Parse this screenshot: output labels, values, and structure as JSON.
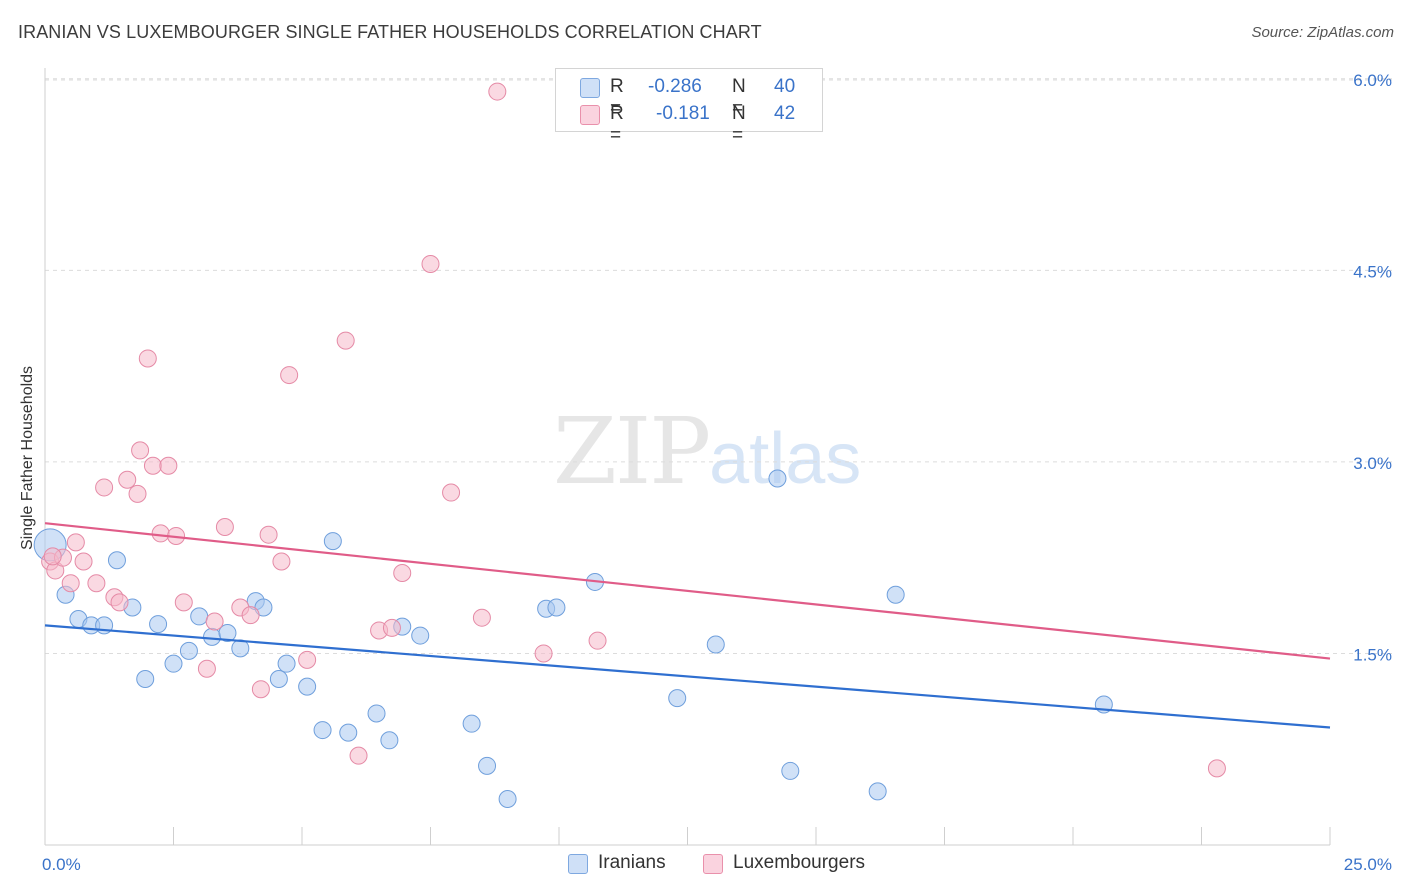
{
  "title": "IRANIAN VS LUXEMBOURGER SINGLE FATHER HOUSEHOLDS CORRELATION CHART",
  "source": "Source: ZipAtlas.com",
  "watermark": {
    "zip": "ZIP",
    "atlas": "atlas"
  },
  "legend": {
    "rows": [
      {
        "r_label": "R =",
        "r_value": "-0.286",
        "n_label": "N =",
        "n_value": "40",
        "color": "#a9c8f0"
      },
      {
        "r_label": "R =",
        "r_value": "-0.181",
        "n_label": "N =",
        "n_value": "42",
        "color": "#f5b9cb"
      }
    ]
  },
  "bottom_legend": [
    {
      "label": "Iranians",
      "color": "#a9c8f0"
    },
    {
      "label": "Luxembourgers",
      "color": "#f5b9cb"
    }
  ],
  "chart_data": {
    "type": "scatter",
    "title": "IRANIAN VS LUXEMBOURGER SINGLE FATHER HOUSEHOLDS CORRELATION CHART",
    "xlabel": "",
    "ylabel": "Single Father Households",
    "xlim": [
      0,
      25
    ],
    "ylim": [
      0,
      6.2
    ],
    "x_tick_labels": [
      "0.0%",
      "25.0%"
    ],
    "y_ticks": [
      1.5,
      3.0,
      4.5,
      6.0
    ],
    "y_tick_labels": [
      "1.5%",
      "3.0%",
      "4.5%",
      "6.0%"
    ],
    "grid": true,
    "series": [
      {
        "name": "Iranians",
        "color": "#a9c8f0",
        "stroke": "#6f9fdc",
        "line_color": "#2f6fd0",
        "trend": {
          "x": [
            0,
            25
          ],
          "y": [
            1.72,
            0.92
          ]
        },
        "points": [
          {
            "x": 0.1,
            "y": 2.35,
            "big": true
          },
          {
            "x": 0.4,
            "y": 1.96
          },
          {
            "x": 0.65,
            "y": 1.77
          },
          {
            "x": 0.9,
            "y": 1.72
          },
          {
            "x": 1.15,
            "y": 1.72
          },
          {
            "x": 1.4,
            "y": 2.23
          },
          {
            "x": 1.7,
            "y": 1.86
          },
          {
            "x": 1.95,
            "y": 1.3
          },
          {
            "x": 2.2,
            "y": 1.73
          },
          {
            "x": 2.5,
            "y": 1.42
          },
          {
            "x": 2.8,
            "y": 1.52
          },
          {
            "x": 3.0,
            "y": 1.79
          },
          {
            "x": 3.25,
            "y": 1.63
          },
          {
            "x": 3.55,
            "y": 1.66
          },
          {
            "x": 3.8,
            "y": 1.54
          },
          {
            "x": 4.1,
            "y": 1.91
          },
          {
            "x": 4.25,
            "y": 1.86
          },
          {
            "x": 4.55,
            "y": 1.3
          },
          {
            "x": 4.7,
            "y": 1.42
          },
          {
            "x": 5.1,
            "y": 1.24
          },
          {
            "x": 5.4,
            "y": 0.9
          },
          {
            "x": 5.6,
            "y": 2.38
          },
          {
            "x": 5.9,
            "y": 0.88
          },
          {
            "x": 6.45,
            "y": 1.03
          },
          {
            "x": 6.7,
            "y": 0.82
          },
          {
            "x": 6.95,
            "y": 1.71
          },
          {
            "x": 7.3,
            "y": 1.64
          },
          {
            "x": 8.3,
            "y": 0.95
          },
          {
            "x": 8.6,
            "y": 0.62
          },
          {
            "x": 9.0,
            "y": 0.36
          },
          {
            "x": 9.75,
            "y": 1.85
          },
          {
            "x": 9.95,
            "y": 1.86
          },
          {
            "x": 10.7,
            "y": 2.06
          },
          {
            "x": 12.3,
            "y": 1.15
          },
          {
            "x": 13.05,
            "y": 1.57
          },
          {
            "x": 14.25,
            "y": 2.87
          },
          {
            "x": 14.5,
            "y": 0.58
          },
          {
            "x": 16.2,
            "y": 0.42
          },
          {
            "x": 16.55,
            "y": 1.96
          },
          {
            "x": 20.6,
            "y": 1.1
          }
        ]
      },
      {
        "name": "Luxembourgers",
        "color": "#f5b9cb",
        "stroke": "#e58aa6",
        "line_color": "#e05c88",
        "trend": {
          "x": [
            0,
            25
          ],
          "y": [
            2.52,
            1.46
          ]
        },
        "points": [
          {
            "x": 0.1,
            "y": 2.22
          },
          {
            "x": 0.2,
            "y": 2.15
          },
          {
            "x": 0.35,
            "y": 2.25
          },
          {
            "x": 0.5,
            "y": 2.05
          },
          {
            "x": 0.6,
            "y": 2.37
          },
          {
            "x": 0.75,
            "y": 2.22
          },
          {
            "x": 1.0,
            "y": 2.05
          },
          {
            "x": 1.15,
            "y": 2.8
          },
          {
            "x": 1.35,
            "y": 1.94
          },
          {
            "x": 1.45,
            "y": 1.9
          },
          {
            "x": 1.6,
            "y": 2.86
          },
          {
            "x": 1.8,
            "y": 2.75
          },
          {
            "x": 1.85,
            "y": 3.09
          },
          {
            "x": 2.0,
            "y": 3.81
          },
          {
            "x": 2.1,
            "y": 2.97
          },
          {
            "x": 2.25,
            "y": 2.44
          },
          {
            "x": 2.4,
            "y": 2.97
          },
          {
            "x": 2.55,
            "y": 2.42
          },
          {
            "x": 2.7,
            "y": 1.9
          },
          {
            "x": 3.15,
            "y": 1.38
          },
          {
            "x": 3.3,
            "y": 1.75
          },
          {
            "x": 3.5,
            "y": 2.49
          },
          {
            "x": 3.8,
            "y": 1.86
          },
          {
            "x": 4.0,
            "y": 1.8
          },
          {
            "x": 4.2,
            "y": 1.22
          },
          {
            "x": 4.35,
            "y": 2.43
          },
          {
            "x": 4.6,
            "y": 2.22
          },
          {
            "x": 4.75,
            "y": 3.68
          },
          {
            "x": 5.1,
            "y": 1.45
          },
          {
            "x": 5.85,
            "y": 3.95
          },
          {
            "x": 6.1,
            "y": 0.7
          },
          {
            "x": 6.5,
            "y": 1.68
          },
          {
            "x": 6.75,
            "y": 1.7
          },
          {
            "x": 6.95,
            "y": 2.13
          },
          {
            "x": 7.5,
            "y": 4.55
          },
          {
            "x": 7.9,
            "y": 2.76
          },
          {
            "x": 8.5,
            "y": 1.78
          },
          {
            "x": 8.8,
            "y": 5.9
          },
          {
            "x": 9.7,
            "y": 1.5
          },
          {
            "x": 10.75,
            "y": 1.6
          },
          {
            "x": 22.8,
            "y": 0.6
          },
          {
            "x": 0.15,
            "y": 2.26
          }
        ]
      }
    ]
  }
}
